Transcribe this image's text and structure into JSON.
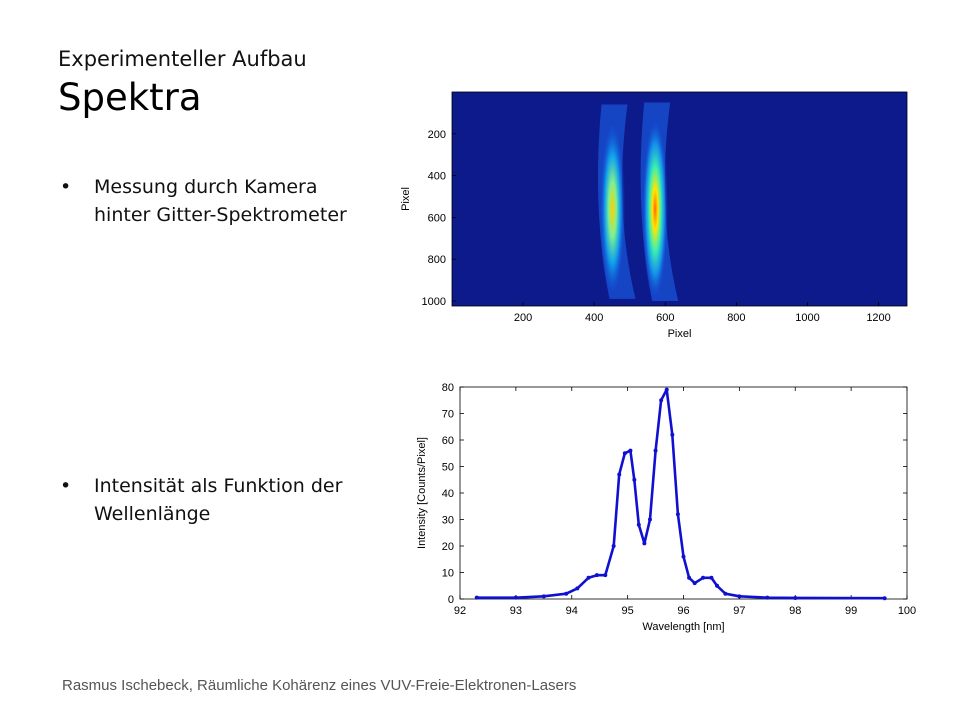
{
  "slide": {
    "subtitle": "Experimenteller Aufbau",
    "title": "Spektra",
    "bullets": [
      "Messung durch Kamera hinter Gitter-Spektrometer",
      "Intensität als Funktion der Wellenlänge"
    ],
    "bullet_symbol": "•",
    "footer": "Rasmus Ischebeck, Räumliche Kohärenz eines VUV-Freie-Elektronen-Lasers"
  },
  "colors": {
    "background": "#ffffff",
    "image_background": "#0d1a8c",
    "series_line": "#1010d0"
  },
  "chart_data": [
    {
      "type": "heatmap",
      "xlabel": "Pixel",
      "ylabel": "Pixel",
      "xlim": [
        0,
        1280
      ],
      "ylim": [
        0,
        1024
      ],
      "x_ticks": [
        200,
        400,
        600,
        800,
        1000,
        1200
      ],
      "y_ticks": [
        200,
        400,
        600,
        800,
        1000
      ],
      "y_inverted": true,
      "colormap": "jet",
      "features": [
        {
          "center_x": 460,
          "y_from": 60,
          "y_to": 990,
          "peak_y": 560,
          "relative_peak": 0.75
        },
        {
          "center_x": 580,
          "y_from": 50,
          "y_to": 1000,
          "peak_y": 560,
          "relative_peak": 1.0
        }
      ]
    },
    {
      "type": "scatter",
      "xlabel": "Wavelength [nm]",
      "ylabel": "Intensity [Counts/Pixel]",
      "xlim": [
        92,
        100
      ],
      "ylim": [
        0,
        80
      ],
      "x_ticks": [
        92,
        93,
        94,
        95,
        96,
        97,
        98,
        99,
        100
      ],
      "y_ticks": [
        0,
        10,
        20,
        30,
        40,
        50,
        60,
        70,
        80
      ],
      "marker": "dot",
      "series": [
        {
          "x": [
            92.3,
            93.0,
            93.5,
            93.9,
            94.1,
            94.3,
            94.45,
            94.6,
            94.75,
            94.85,
            94.95,
            95.05,
            95.12,
            95.2,
            95.3,
            95.4,
            95.5,
            95.6,
            95.7,
            95.8,
            95.9,
            96.0,
            96.1,
            96.2,
            96.35,
            96.5,
            96.6,
            96.75,
            97.0,
            97.5,
            98.0,
            99.6
          ],
          "y": [
            0.5,
            0.5,
            1,
            2,
            4,
            8,
            9,
            9,
            20,
            47,
            55,
            56,
            45,
            28,
            21,
            30,
            56,
            75,
            79,
            62,
            32,
            16,
            8,
            6,
            8,
            8,
            5,
            2,
            1,
            0.5,
            0.4,
            0.3
          ]
        }
      ]
    }
  ]
}
